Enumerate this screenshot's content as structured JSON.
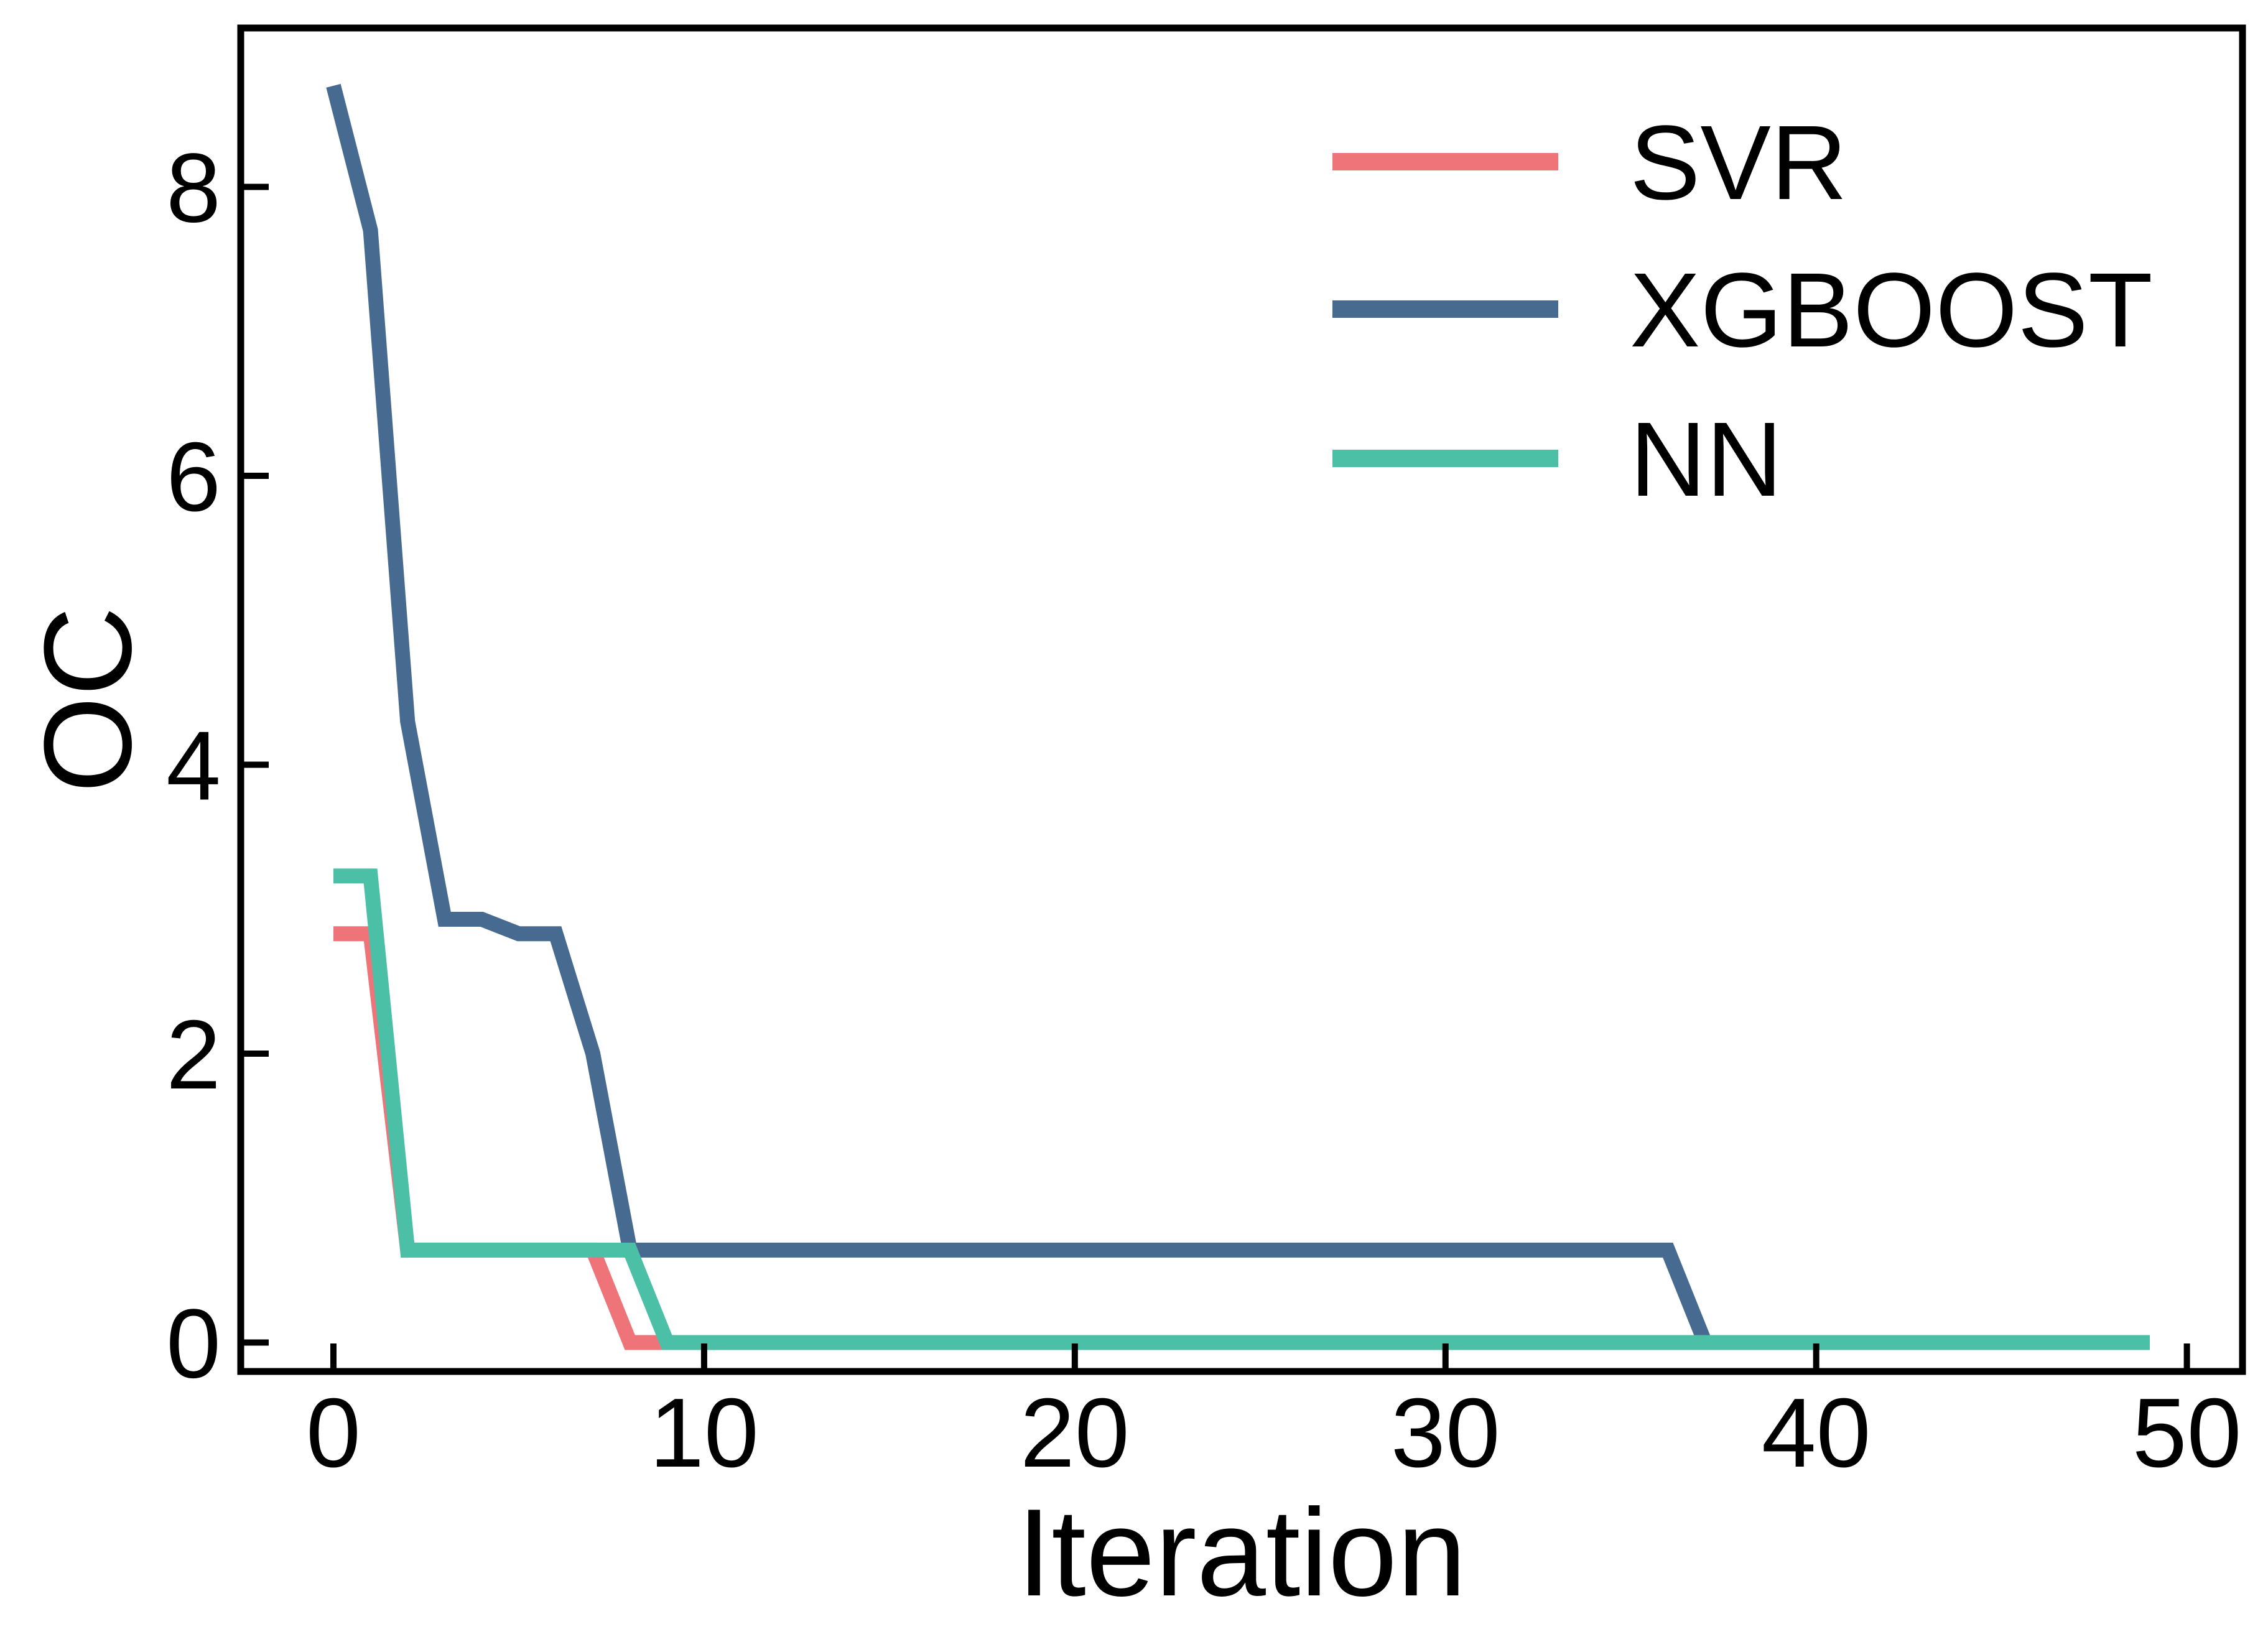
{
  "chart_data": {
    "type": "line",
    "xlabel": "Iteration",
    "ylabel": "OC",
    "xlim": [
      -2.5,
      51.5
    ],
    "ylim": [
      -0.2,
      9.1
    ],
    "xticks": [
      0,
      10,
      20,
      30,
      40,
      50
    ],
    "yticks": [
      0,
      2,
      4,
      6,
      8
    ],
    "xtick_labels": [
      "0",
      "10",
      "20",
      "30",
      "40",
      "50"
    ],
    "ytick_labels": [
      "0",
      "2",
      "4",
      "6",
      "8"
    ],
    "grid": false,
    "legend_position": "top-right",
    "series": [
      {
        "name": "SVR",
        "color": "#ee7479",
        "x": [
          0,
          1,
          2,
          3,
          4,
          5,
          6,
          7,
          8,
          9,
          10,
          11,
          12,
          13,
          14,
          15,
          16,
          17,
          18,
          19,
          20,
          21,
          22,
          23,
          24,
          25,
          26,
          27,
          28,
          29,
          30,
          31,
          32,
          33,
          34,
          35,
          36,
          37,
          38,
          39,
          40,
          41,
          42,
          43,
          44,
          45,
          46,
          47,
          48,
          49
        ],
        "y": [
          2.83,
          2.83,
          0.64,
          0.64,
          0.64,
          0.64,
          0.64,
          0.64,
          0.0,
          0.0,
          0.0,
          0.0,
          0.0,
          0.0,
          0.0,
          0.0,
          0.0,
          0.0,
          0.0,
          0.0,
          0.0,
          0.0,
          0.0,
          0.0,
          0.0,
          0.0,
          0.0,
          0.0,
          0.0,
          0.0,
          0.0,
          0.0,
          0.0,
          0.0,
          0.0,
          0.0,
          0.0,
          0.0,
          0.0,
          0.0,
          0.0,
          0.0,
          0.0,
          0.0,
          0.0,
          0.0,
          0.0,
          0.0,
          0.0,
          0.0
        ]
      },
      {
        "name": "XGBOOST",
        "color": "#466a90",
        "x": [
          0,
          1,
          2,
          3,
          4,
          5,
          6,
          7,
          8,
          9,
          10,
          11,
          12,
          13,
          14,
          15,
          16,
          17,
          18,
          19,
          20,
          21,
          22,
          23,
          24,
          25,
          26,
          27,
          28,
          29,
          30,
          31,
          32,
          33,
          34,
          35,
          36,
          37,
          38,
          39,
          40,
          41,
          42,
          43,
          44,
          45,
          46,
          47,
          48,
          49
        ],
        "y": [
          8.7,
          7.7,
          4.3,
          2.93,
          2.93,
          2.83,
          2.83,
          2.0,
          0.64,
          0.64,
          0.64,
          0.64,
          0.64,
          0.64,
          0.64,
          0.64,
          0.64,
          0.64,
          0.64,
          0.64,
          0.64,
          0.64,
          0.64,
          0.64,
          0.64,
          0.64,
          0.64,
          0.64,
          0.64,
          0.64,
          0.64,
          0.64,
          0.64,
          0.64,
          0.64,
          0.64,
          0.64,
          0.0,
          0.0,
          0.0,
          0.0,
          0.0,
          0.0,
          0.0,
          0.0,
          0.0,
          0.0,
          0.0,
          0.0,
          0.0
        ]
      },
      {
        "name": "NN",
        "color": "#4cc0a7",
        "x": [
          0,
          1,
          2,
          3,
          4,
          5,
          6,
          7,
          8,
          9,
          10,
          11,
          12,
          13,
          14,
          15,
          16,
          17,
          18,
          19,
          20,
          21,
          22,
          23,
          24,
          25,
          26,
          27,
          28,
          29,
          30,
          31,
          32,
          33,
          34,
          35,
          36,
          37,
          38,
          39,
          40,
          41,
          42,
          43,
          44,
          45,
          46,
          47,
          48,
          49
        ],
        "y": [
          3.23,
          3.23,
          0.64,
          0.64,
          0.64,
          0.64,
          0.64,
          0.64,
          0.64,
          0.0,
          0.0,
          0.0,
          0.0,
          0.0,
          0.0,
          0.0,
          0.0,
          0.0,
          0.0,
          0.0,
          0.0,
          0.0,
          0.0,
          0.0,
          0.0,
          0.0,
          0.0,
          0.0,
          0.0,
          0.0,
          0.0,
          0.0,
          0.0,
          0.0,
          0.0,
          0.0,
          0.0,
          0.0,
          0.0,
          0.0,
          0.0,
          0.0,
          0.0,
          0.0,
          0.0,
          0.0,
          0.0,
          0.0,
          0.0,
          0.0
        ]
      }
    ]
  }
}
